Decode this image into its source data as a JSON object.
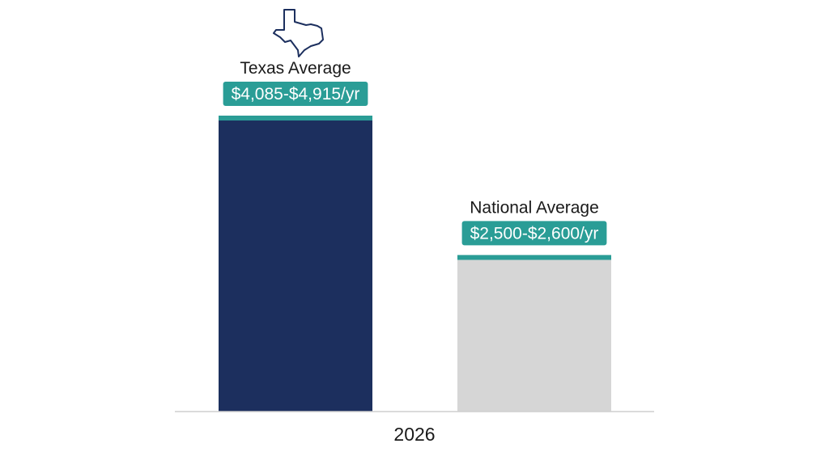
{
  "chart_data": {
    "type": "bar",
    "categories": [
      "Texas Average",
      "National Average"
    ],
    "series": [
      {
        "values": [
          4915,
          2600
        ],
        "ranges": [
          [
            4085,
            4915
          ],
          [
            2500,
            2600
          ]
        ],
        "range_labels": [
          "$4,085-$4,915/yr",
          "$2,500-$2,600/yr"
        ],
        "colors": [
          "#1c2f5e",
          "#d6d6d6"
        ]
      }
    ],
    "x_category_label": "2026",
    "title": "",
    "xlabel": "",
    "ylabel": "",
    "ylim": [
      0,
      5500
    ],
    "grid": false,
    "legend": "none",
    "accent_color": "#2a9d96",
    "texas_icon": "texas-outline-icon"
  }
}
